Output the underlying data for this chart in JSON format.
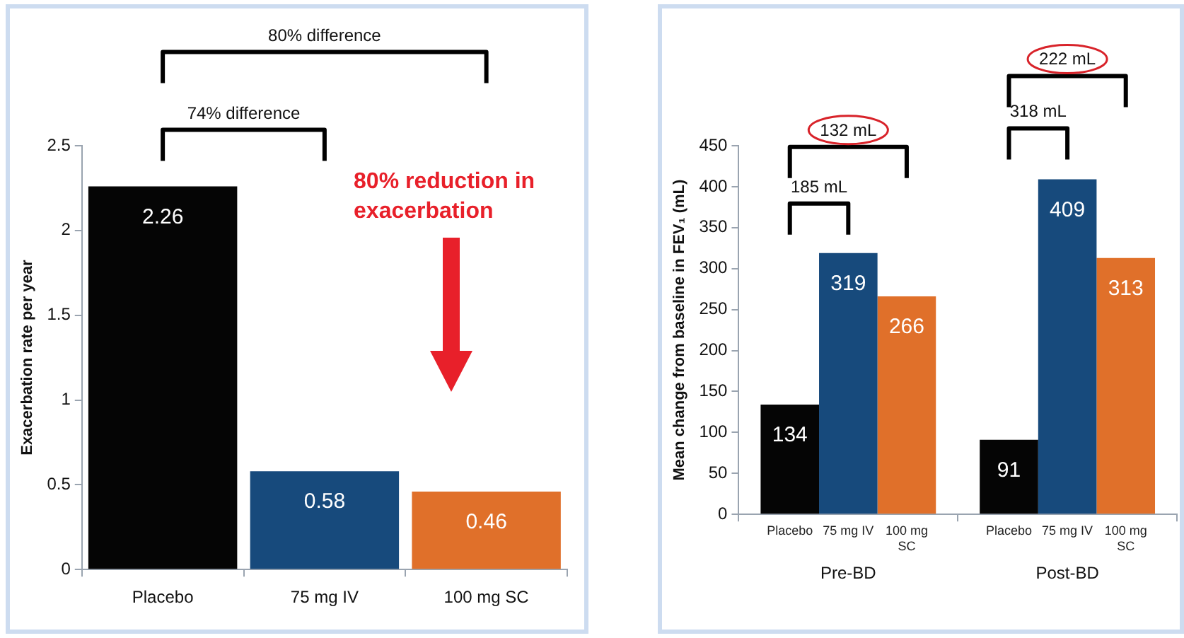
{
  "chart_data": [
    {
      "type": "bar",
      "categories": [
        "Placebo",
        "75 mg IV",
        "100 mg SC"
      ],
      "values": [
        2.26,
        0.58,
        0.46
      ],
      "colors": [
        "#050505",
        "#174a7c",
        "#e0702a"
      ],
      "ylabel": "Exacerbation rate per year",
      "ylim": [
        0,
        2.5
      ],
      "yticks": [
        0,
        0.5,
        1,
        1.5,
        2,
        2.5
      ],
      "data_labels": true,
      "annotations": [
        "80% difference",
        "74% difference",
        "80% reduction in exacerbation"
      ]
    },
    {
      "type": "bar",
      "categories": [
        "Pre-BD",
        "Post-BD"
      ],
      "ylabel": "Mean change from baseline in FEV₁ (mL)",
      "ylim": [
        0,
        450
      ],
      "yticks": [
        0,
        50,
        100,
        150,
        200,
        250,
        300,
        350,
        400,
        450
      ],
      "data_labels": true,
      "legend": false,
      "series": [
        {
          "name": "Placebo",
          "color": "#050505",
          "values": [
            134,
            91
          ]
        },
        {
          "name": "75 mg IV",
          "color": "#174a7c",
          "values": [
            319,
            409
          ]
        },
        {
          "name": "100 mg SC",
          "color": "#e0702a",
          "values": [
            266,
            313
          ]
        }
      ],
      "annotations": [
        "132 mL",
        "185 mL",
        "222 mL",
        "318 mL"
      ]
    }
  ]
}
